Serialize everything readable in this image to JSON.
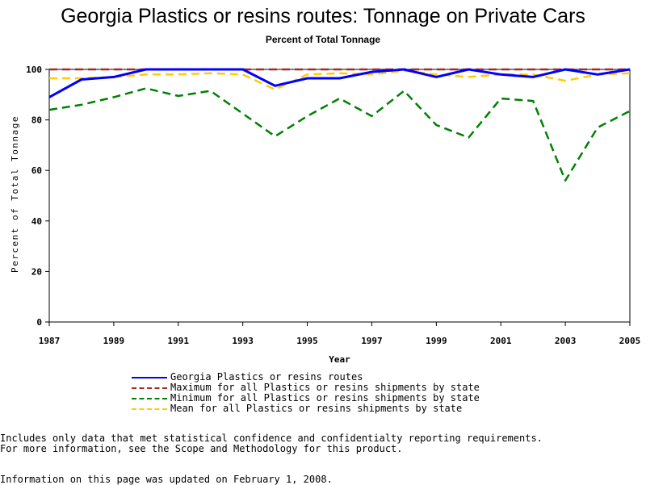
{
  "chart_data": {
    "type": "line",
    "title": "Georgia Plastics or resins routes: Tonnage on Private Cars",
    "subtitle": "Percent of Total Tonnage",
    "xlabel": "Year",
    "ylabel": "Percent of Total Tonnage",
    "xlim": [
      1987,
      2005
    ],
    "ylim": [
      0,
      100
    ],
    "x_ticks": [
      "1987",
      "1989",
      "1991",
      "1993",
      "1995",
      "1997",
      "1999",
      "2001",
      "2003",
      "2005"
    ],
    "y_ticks": [
      "0",
      "20",
      "40",
      "60",
      "80",
      "100"
    ],
    "grid": false,
    "legend_position": "bottom",
    "x": [
      1987,
      1988,
      1989,
      1990,
      1991,
      1992,
      1993,
      1994,
      1995,
      1996,
      1997,
      1998,
      1999,
      2000,
      2001,
      2002,
      2003,
      2004,
      2005
    ],
    "series": [
      {
        "name": "Georgia Plastics or resins routes",
        "color": "#0000ff",
        "style": "solid",
        "values": [
          89,
          96,
          97,
          100,
          100,
          100,
          100,
          93.5,
          96.5,
          96.5,
          99,
          100,
          97,
          100,
          98,
          97,
          100,
          98,
          100
        ]
      },
      {
        "name": "Maximum for all Plastics or resins shipments by state",
        "color": "#a52a2a",
        "style": "dashed",
        "values": [
          100,
          100,
          100,
          100,
          100,
          100,
          100,
          100,
          100,
          100,
          100,
          100,
          100,
          100,
          100,
          100,
          100,
          100,
          100
        ]
      },
      {
        "name": "Minimum for all Plastics or resins shipments by state",
        "color": "#008000",
        "style": "dashed",
        "values": [
          84,
          86,
          89,
          92.5,
          89.5,
          91.5,
          82.5,
          73.5,
          81.5,
          88.5,
          81.5,
          91.5,
          78,
          73,
          88.5,
          87.5,
          56,
          77,
          83.5
        ]
      },
      {
        "name": "Mean for all Plastics or resins shipments by state",
        "color": "#ffcc00",
        "style": "dashed",
        "values": [
          96.5,
          96.5,
          97,
          98,
          98,
          98.5,
          98,
          92,
          98,
          98.5,
          98,
          99.5,
          98,
          97,
          98,
          98,
          95.5,
          98,
          98.5
        ]
      }
    ]
  },
  "notes": [
    "Includes only data that met statistical confidence and confidentialty reporting requirements.",
    "For more information, see the Scope and Methodology for this product.",
    "Information on this page was updated on February 1, 2008."
  ]
}
